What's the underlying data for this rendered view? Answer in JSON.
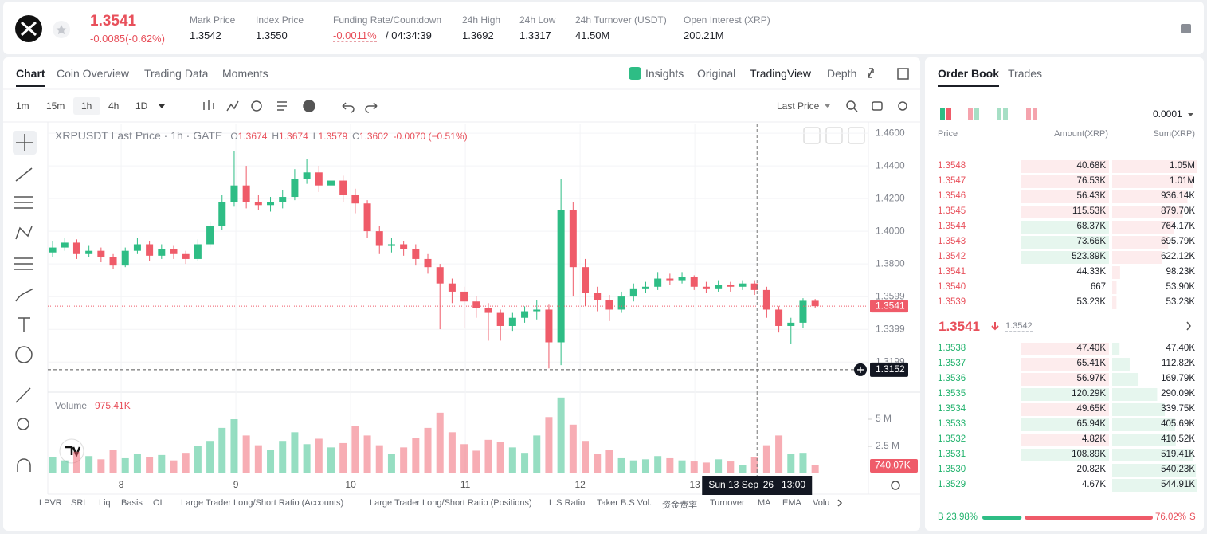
{
  "header": {
    "price": "1.3541",
    "change": "-0.0085(-0.62%)",
    "stats": [
      {
        "label": "Mark Price",
        "value": "1.3542"
      },
      {
        "label": "Index Price",
        "value": "1.3550"
      },
      {
        "label": "Funding Rate/Countdown",
        "value": "-0.0011%",
        "extra": "/ 04:34:39"
      },
      {
        "label": "24h High",
        "value": "1.3692"
      },
      {
        "label": "24h Low",
        "value": "1.3317"
      },
      {
        "label": "24h Turnover (USDT)",
        "value": "41.50M"
      },
      {
        "label": "Open Interest (XRP)",
        "value": "200.21M"
      }
    ]
  },
  "tabs": [
    "Chart",
    "Coin Overview",
    "Trading Data",
    "Moments"
  ],
  "views": [
    "Insights",
    "Original",
    "TradingView",
    "Depth"
  ],
  "intervals": [
    "1m",
    "15m",
    "1h",
    "4h",
    "1D"
  ],
  "price_type": "Last Price",
  "chart_data": {
    "type": "candlestick",
    "symbol": "XRPUSDT Last Price · 1h · GATE",
    "ohlc_labels": [
      "O",
      "H",
      "L",
      "C"
    ],
    "ohlc": [
      "1.3674",
      "1.3674",
      "1.3579",
      "1.3602"
    ],
    "change": "-0.0070 (−0.51%)",
    "up_color": "#2ebd85",
    "down_color": "#ef5b69",
    "candles": [
      [
        1.387,
        1.394,
        1.384,
        1.39
      ],
      [
        1.39,
        1.396,
        1.388,
        1.393
      ],
      [
        1.393,
        1.395,
        1.383,
        1.386
      ],
      [
        1.386,
        1.391,
        1.384,
        1.388
      ],
      [
        1.388,
        1.39,
        1.381,
        1.384
      ],
      [
        1.384,
        1.386,
        1.377,
        1.379
      ],
      [
        1.379,
        1.39,
        1.378,
        1.388
      ],
      [
        1.388,
        1.396,
        1.386,
        1.392
      ],
      [
        1.392,
        1.394,
        1.382,
        1.385
      ],
      [
        1.385,
        1.392,
        1.383,
        1.389
      ],
      [
        1.389,
        1.391,
        1.383,
        1.386
      ],
      [
        1.386,
        1.388,
        1.38,
        1.383
      ],
      [
        1.383,
        1.395,
        1.382,
        1.392
      ],
      [
        1.392,
        1.406,
        1.39,
        1.403
      ],
      [
        1.403,
        1.422,
        1.401,
        1.418
      ],
      [
        1.418,
        1.449,
        1.415,
        1.428
      ],
      [
        1.428,
        1.44,
        1.414,
        1.418
      ],
      [
        1.418,
        1.422,
        1.413,
        1.416
      ],
      [
        1.416,
        1.421,
        1.412,
        1.418
      ],
      [
        1.418,
        1.425,
        1.414,
        1.421
      ],
      [
        1.421,
        1.438,
        1.419,
        1.432
      ],
      [
        1.432,
        1.444,
        1.429,
        1.436
      ],
      [
        1.436,
        1.44,
        1.424,
        1.428
      ],
      [
        1.428,
        1.439,
        1.425,
        1.431
      ],
      [
        1.431,
        1.434,
        1.418,
        1.422
      ],
      [
        1.422,
        1.426,
        1.411,
        1.417
      ],
      [
        1.417,
        1.419,
        1.396,
        1.4
      ],
      [
        1.4,
        1.403,
        1.386,
        1.391
      ],
      [
        1.391,
        1.396,
        1.387,
        1.392
      ],
      [
        1.392,
        1.394,
        1.385,
        1.389
      ],
      [
        1.389,
        1.392,
        1.379,
        1.383
      ],
      [
        1.383,
        1.386,
        1.374,
        1.378
      ],
      [
        1.378,
        1.38,
        1.34,
        1.368
      ],
      [
        1.368,
        1.371,
        1.356,
        1.363
      ],
      [
        1.363,
        1.366,
        1.341,
        1.357
      ],
      [
        1.357,
        1.36,
        1.347,
        1.353
      ],
      [
        1.353,
        1.356,
        1.333,
        1.35
      ],
      [
        1.35,
        1.352,
        1.333,
        1.342
      ],
      [
        1.342,
        1.35,
        1.339,
        1.347
      ],
      [
        1.347,
        1.354,
        1.344,
        1.351
      ],
      [
        1.351,
        1.358,
        1.346,
        1.352
      ],
      [
        1.352,
        1.355,
        1.316,
        1.332
      ],
      [
        1.332,
        1.432,
        1.318,
        1.413
      ],
      [
        1.413,
        1.418,
        1.36,
        1.378
      ],
      [
        1.378,
        1.383,
        1.354,
        1.362
      ],
      [
        1.362,
        1.366,
        1.351,
        1.358
      ],
      [
        1.358,
        1.361,
        1.345,
        1.352
      ],
      [
        1.352,
        1.363,
        1.35,
        1.36
      ],
      [
        1.36,
        1.368,
        1.357,
        1.365
      ],
      [
        1.365,
        1.369,
        1.362,
        1.366
      ],
      [
        1.366,
        1.375,
        1.364,
        1.371
      ],
      [
        1.371,
        1.374,
        1.367,
        1.37
      ],
      [
        1.37,
        1.375,
        1.368,
        1.372
      ],
      [
        1.372,
        1.373,
        1.364,
        1.366
      ],
      [
        1.366,
        1.369,
        1.362,
        1.365
      ],
      [
        1.365,
        1.37,
        1.363,
        1.367
      ],
      [
        1.367,
        1.369,
        1.363,
        1.366
      ],
      [
        1.366,
        1.37,
        1.364,
        1.368
      ],
      [
        1.368,
        1.37,
        1.361,
        1.364
      ],
      [
        1.364,
        1.366,
        1.347,
        1.352
      ],
      [
        1.352,
        1.354,
        1.338,
        1.342
      ],
      [
        1.342,
        1.347,
        1.331,
        1.344
      ],
      [
        1.344,
        1.359,
        1.341,
        1.3574
      ],
      [
        1.3574,
        1.3585,
        1.3532,
        1.3541
      ]
    ],
    "xlim": [
      -0.4,
      67.4
    ],
    "xticks": [
      {
        "value": 5.66,
        "label": "8"
      },
      {
        "value": 15.14,
        "label": "9"
      },
      {
        "value": 24.62,
        "label": "10"
      },
      {
        "value": 34.1,
        "label": "11"
      },
      {
        "value": 43.58,
        "label": "12"
      },
      {
        "value": 53.06,
        "label": "13"
      }
    ],
    "ylim": [
      1.3015,
      1.4659
    ],
    "yticks": [
      {
        "value": 1.46,
        "label": "1.4600"
      },
      {
        "value": 1.44,
        "label": "1.4400"
      },
      {
        "value": 1.42,
        "label": "1.4200"
      },
      {
        "value": 1.4,
        "label": "1.4000"
      },
      {
        "value": 1.38,
        "label": "1.3800"
      },
      1.3599,
      1.3399,
      1.3199
    ],
    "last_price": 1.3541,
    "crosshair": {
      "x": 58.2,
      "y": 1.3152,
      "time": "Sun 13 Sep '26   13:00"
    },
    "volume": {
      "title": "Volume",
      "current": "975.41K",
      "last": "740.07K",
      "ylim": [
        0,
        7.06
      ],
      "yticks": [
        {
          "value": 5,
          "label": "5 M"
        },
        {
          "value": 2.5,
          "label": "2.5 M"
        }
      ],
      "values": [
        1.5,
        1.2,
        2.0,
        1.6,
        1.3,
        2.2,
        1.4,
        1.8,
        1.5,
        1.7,
        1.2,
        1.9,
        2.5,
        3.0,
        4.2,
        5.0,
        3.5,
        2.6,
        2.2,
        3.0,
        3.8,
        2.7,
        3.2,
        2.4,
        2.8,
        4.4,
        3.5,
        2.6,
        1.8,
        2.4,
        3.3,
        4.2,
        5.6,
        3.8,
        2.7,
        2.1,
        3.1,
        2.9,
        2.4,
        1.9,
        3.5,
        5.2,
        7.0,
        4.5,
        3.0,
        1.8,
        2.2,
        1.4,
        1.2,
        1.3,
        1.6,
        1.4,
        1.2,
        1.1,
        1.0,
        1.3,
        1.1,
        0.8,
        1.5,
        2.6,
        3.5,
        1.8,
        1.9,
        0.74
      ]
    }
  },
  "indicators": [
    "LPVR",
    "SRL",
    "Liq",
    "Basis",
    "OI",
    "Large Trader Long/Short Ratio (Accounts)",
    "Large Trader Long/Short Ratio (Positions)",
    "L.S Ratio",
    "Taker B.S Vol.",
    "资金费率",
    "Turnover",
    "MA",
    "EMA",
    "Volu"
  ],
  "order_book": {
    "tabs": [
      "Order Book",
      "Trades"
    ],
    "precision": "0.0001",
    "columns": [
      "Price",
      "Amount(XRP)",
      "Sum(XRP)"
    ],
    "asks": [
      {
        "price": "1.3548",
        "amount": "40.68K",
        "sum": {
          "value": 1050,
          "label": "1.05M"
        },
        "flash": "sell"
      },
      {
        "price": "1.3547",
        "amount": "76.53K",
        "sum": {
          "value": 1010,
          "label": "1.01M"
        },
        "flash": "sell"
      },
      {
        "price": "1.3546",
        "amount": "56.43K",
        "sum": {
          "value": 936.14,
          "label": "936.14K"
        },
        "flash": "sell"
      },
      {
        "price": "1.3545",
        "amount": "115.53K",
        "sum": {
          "value": 879.7,
          "label": "879.70K"
        },
        "flash": "sell"
      },
      {
        "price": "1.3544",
        "amount": "68.37K",
        "sum": {
          "value": 764.17,
          "label": "764.17K"
        },
        "flash": "buy"
      },
      {
        "price": "1.3543",
        "amount": "73.66K",
        "sum": {
          "value": 695.79,
          "label": "695.79K"
        },
        "flash": "buy"
      },
      {
        "price": "1.3542",
        "amount": "523.89K",
        "sum": {
          "value": 622.12,
          "label": "622.12K"
        },
        "flash": "buy"
      },
      {
        "price": "1.3541",
        "amount": "44.33K",
        "sum": {
          "value": 98.23,
          "label": "98.23K"
        },
        "flash": "none"
      },
      {
        "price": "1.3540",
        "amount": "667",
        "sum": {
          "value": 53.9,
          "label": "53.90K"
        },
        "flash": "none"
      },
      {
        "price": "1.3539",
        "amount": "53.23K",
        "sum": {
          "value": 53.23,
          "label": "53.23K"
        },
        "flash": "none"
      }
    ],
    "last": "1.3541",
    "mark": "1.3542",
    "bids": [
      {
        "price": "1.3538",
        "amount": "47.40K",
        "sum": {
          "value": 47.4,
          "label": "47.40K"
        },
        "flash": "sell"
      },
      {
        "price": "1.3537",
        "amount": "65.41K",
        "sum": {
          "value": 112.82,
          "label": "112.82K"
        },
        "flash": "sell"
      },
      {
        "price": "1.3536",
        "amount": "56.97K",
        "sum": {
          "value": 169.79,
          "label": "169.79K"
        },
        "flash": "sell"
      },
      {
        "price": "1.3535",
        "amount": "120.29K",
        "sum": {
          "value": 290.09,
          "label": "290.09K"
        },
        "flash": "buy"
      },
      {
        "price": "1.3534",
        "amount": "49.65K",
        "sum": {
          "value": 339.75,
          "label": "339.75K"
        },
        "flash": "sell"
      },
      {
        "price": "1.3533",
        "amount": "65.94K",
        "sum": {
          "value": 405.69,
          "label": "405.69K"
        },
        "flash": "buy"
      },
      {
        "price": "1.3532",
        "amount": "4.82K",
        "sum": {
          "value": 410.52,
          "label": "410.52K"
        },
        "flash": "sell"
      },
      {
        "price": "1.3531",
        "amount": "108.89K",
        "sum": {
          "value": 519.41,
          "label": "519.41K"
        },
        "flash": "buy"
      },
      {
        "price": "1.3530",
        "amount": "20.82K",
        "sum": {
          "value": 540.23,
          "label": "540.23K"
        },
        "flash": "none"
      },
      {
        "price": "1.3529",
        "amount": "4.67K",
        "sum": {
          "value": 544.91,
          "label": "544.91K"
        },
        "flash": "none"
      }
    ],
    "buy_label": "B",
    "sell_label": "S",
    "buy": {
      "value": 23.98,
      "label": "23.98%"
    },
    "sell": {
      "value": 76.02,
      "label": "76.02%"
    }
  }
}
